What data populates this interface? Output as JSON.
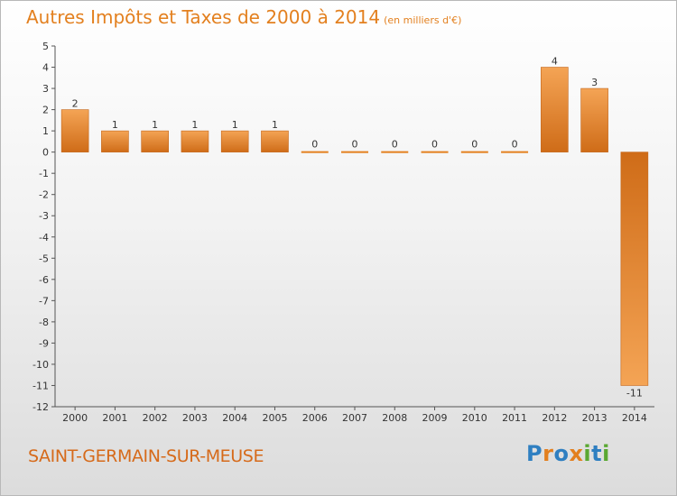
{
  "title": "Autres Impôts et Taxes de 2000 à 2014",
  "subtitle": "(en milliers d'€)",
  "commune": "SAINT-GERMAIN-SUR-MEUSE",
  "logo": {
    "text": "Proxiti",
    "colors": [
      "#2f7fc1",
      "#e3801f",
      "#2f7fc1",
      "#e3801f",
      "#5aa832",
      "#2f7fc1",
      "#5aa832"
    ]
  },
  "colors": {
    "accent": "#e3801f",
    "bar_light": "#f4a455",
    "bar_dark": "#cf6c18"
  },
  "chart_data": {
    "type": "bar",
    "title": "Autres Impôts et Taxes de 2000 à 2014",
    "subtitle": "(en milliers d'€)",
    "xlabel": "",
    "ylabel": "",
    "categories": [
      "2000",
      "2001",
      "2002",
      "2003",
      "2004",
      "2005",
      "2006",
      "2007",
      "2008",
      "2009",
      "2010",
      "2011",
      "2012",
      "2013",
      "2014"
    ],
    "values": [
      2,
      1,
      1,
      1,
      1,
      1,
      0,
      0,
      0,
      0,
      0,
      0,
      4,
      3,
      -11
    ],
    "data_labels": [
      "2",
      "1",
      "1",
      "1",
      "1",
      "1",
      "0",
      "0",
      "0",
      "0",
      "0",
      "0",
      "4",
      "3",
      "-11"
    ],
    "yticks": [
      5,
      4,
      3,
      2,
      1,
      0,
      -1,
      -2,
      -3,
      -4,
      -5,
      -6,
      -7,
      -8,
      -9,
      -10,
      -11,
      -12
    ],
    "ytick_labels": [
      "5",
      "4",
      "3",
      "2",
      "1",
      "0",
      "-1",
      "-2",
      "-3",
      "-4",
      "-5",
      "-6",
      "-7",
      "-8",
      "-9",
      "-10",
      "-11",
      "-12"
    ],
    "ylim": [
      -12,
      5
    ],
    "grid": false,
    "legend": "none"
  }
}
